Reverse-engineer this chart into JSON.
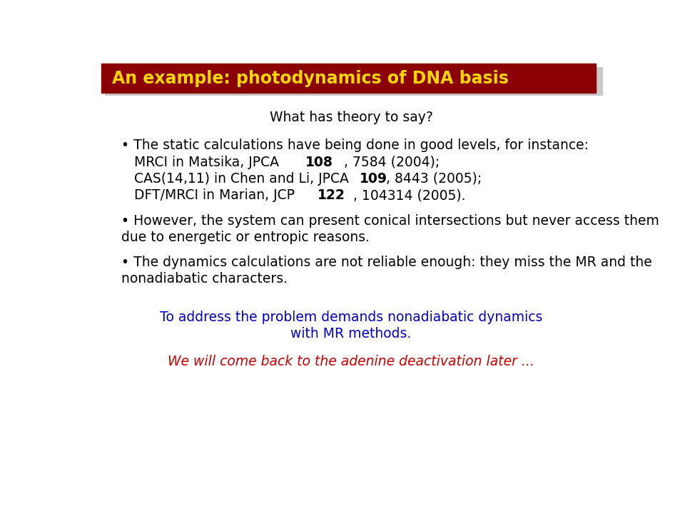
{
  "title": "An example: photodynamics of DNA basis",
  "title_color": "#FFD700",
  "title_bg_color": "#8B0000",
  "bg_color": "#FFFFFF",
  "subtitle": "What has theory to say?",
  "subtitle_color": "#000000",
  "bullet1_line1": "• The static calculations have being done in good levels, for instance:",
  "bullet1_line2_pre": "   MRCI in Matsika, JPCA ",
  "bullet1_line2_bold": "108",
  "bullet1_line2_post": ", 7584 (2004);",
  "bullet1_line3_pre": "   CAS(14,11) in Chen and Li, JPCA ",
  "bullet1_line3_bold": "109",
  "bullet1_line3_post": ", 8443 (2005);",
  "bullet1_line4_pre": "   DFT/MRCI in Marian, JCP ",
  "bullet1_line4_bold": "122",
  "bullet1_line4_post": ", 104314 (2005).",
  "bullet2_line1": "• However, the system can present conical intersections but never access them",
  "bullet2_line2": "due to energetic or entropic reasons.",
  "bullet3_line1": "• The dynamics calculations are not reliable enough: they miss the MR and the",
  "bullet3_line2": "nonadiabatic characters.",
  "centered_text1": "To address the problem demands nonadiabatic dynamics",
  "centered_text2": "with MR methods.",
  "centered_color": "#0000CD",
  "italic_text": "We will come back to the adenine deactivation later ...",
  "italic_color": "#CC0000",
  "body_color": "#000000",
  "font_size": 13.5,
  "title_font_size": 17
}
